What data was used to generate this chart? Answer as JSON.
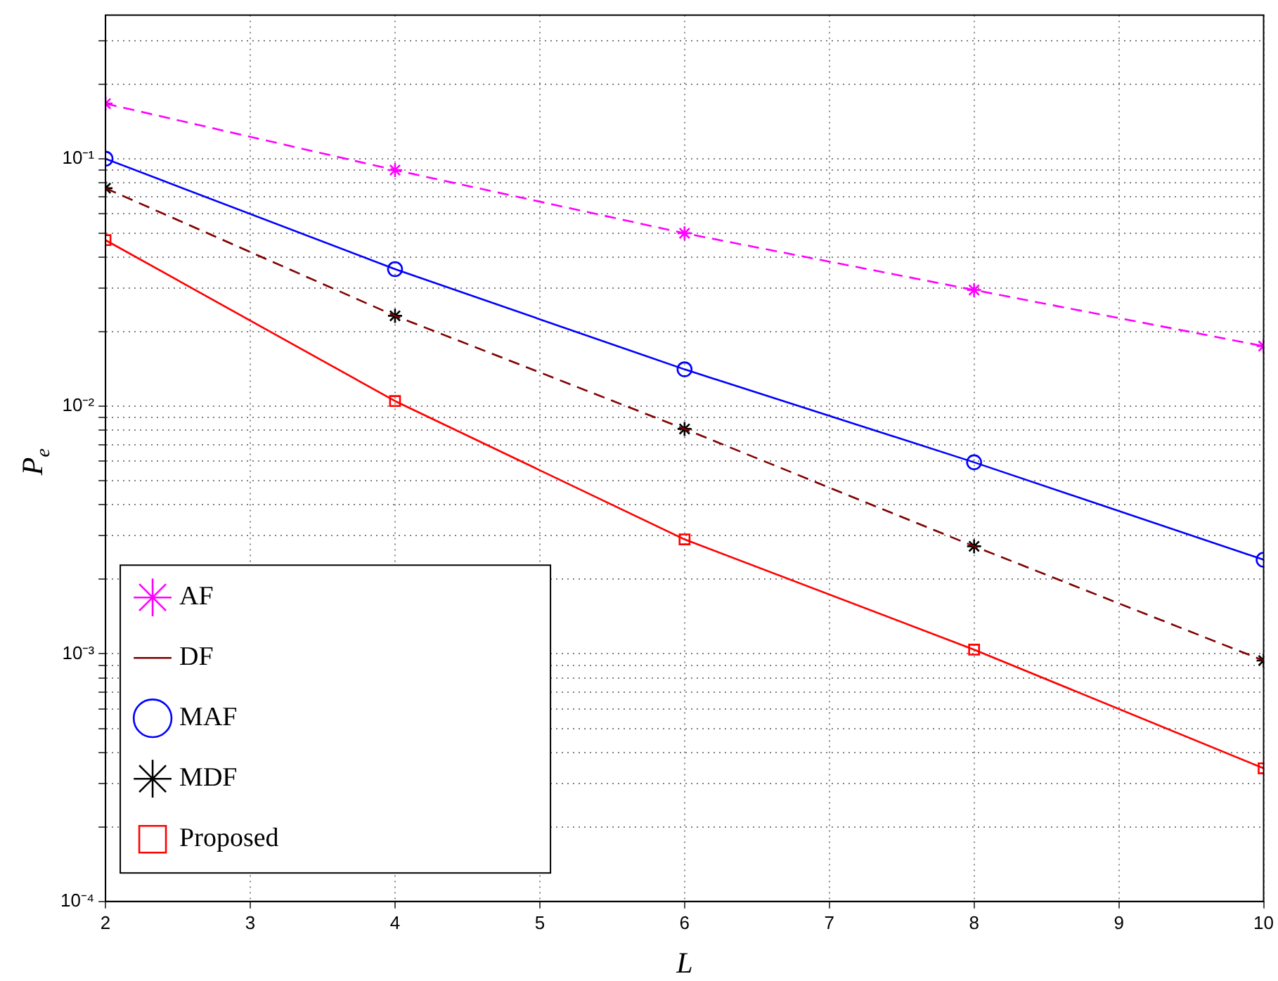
{
  "chart_data": {
    "type": "line",
    "xlabel": "L",
    "ylabel": "P$_{e}$",
    "x": [
      2,
      4,
      6,
      8,
      10
    ],
    "log": "y",
    "grid": true,
    "legend": "bottom left",
    "xlim": [
      2,
      10
    ],
    "xticks": [
      2,
      3,
      4,
      5,
      6,
      7,
      8,
      9,
      10
    ],
    "ylim": [
      0.0001,
      0.38
    ],
    "yticks": [
      {
        "value": 0.0001,
        "label": "10⁻⁴"
      },
      {
        "value": 0.0002,
        "label": null
      },
      {
        "value": 0.0003,
        "label": null
      },
      {
        "value": 0.0004,
        "label": null
      },
      {
        "value": 0.0005,
        "label": null
      },
      {
        "value": 0.0006,
        "label": null
      },
      {
        "value": 0.0007,
        "label": null
      },
      {
        "value": 0.0008,
        "label": null
      },
      {
        "value": 0.0009,
        "label": null
      },
      {
        "value": 0.001,
        "label": "10⁻³"
      },
      {
        "value": 0.002,
        "label": null
      },
      {
        "value": 0.003,
        "label": null
      },
      {
        "value": 0.004,
        "label": null
      },
      {
        "value": 0.005,
        "label": null
      },
      {
        "value": 0.006,
        "label": null
      },
      {
        "value": 0.007,
        "label": null
      },
      {
        "value": 0.008,
        "label": null
      },
      {
        "value": 0.009,
        "label": null
      },
      {
        "value": 0.01,
        "label": "10⁻²"
      },
      {
        "value": 0.02,
        "label": null
      },
      {
        "value": 0.03,
        "label": null
      },
      {
        "value": 0.04,
        "label": null
      },
      {
        "value": 0.05,
        "label": null
      },
      {
        "value": 0.06,
        "label": null
      },
      {
        "value": 0.07,
        "label": null
      },
      {
        "value": 0.08,
        "label": null
      },
      {
        "value": 0.09,
        "label": null
      },
      {
        "value": 0.1,
        "label": "10⁻¹"
      },
      {
        "value": 0.2,
        "label": null
      },
      {
        "value": 0.3,
        "label": null
      }
    ],
    "series": [
      {
        "name": "AF",
        "color": "#ff00ff",
        "line_style": "dashed",
        "marker": "cross",
        "values": [
          0.167,
          0.09,
          0.05,
          0.0295,
          0.0175
        ]
      },
      {
        "name": "DF",
        "color": "#800000",
        "line_style": "dashed",
        "marker": "none",
        "values": [
          0.076,
          0.0232,
          0.0081,
          0.00272,
          0.00094
        ]
      },
      {
        "name": "MAF",
        "color": "#0000ff",
        "line_style": "solid",
        "marker": "circle",
        "values": [
          0.1,
          0.0358,
          0.0141,
          0.00594,
          0.0024
        ]
      },
      {
        "name": "MDF",
        "type": "scatter",
        "color": "#000000",
        "marker": "cross",
        "values": [
          0.076,
          0.0232,
          0.0081,
          0.00272,
          0.00094
        ]
      },
      {
        "name": "Proposed",
        "color": "#ff0000",
        "line_style": "solid",
        "marker": "square",
        "values": [
          0.0469,
          0.0105,
          0.0029,
          0.00104,
          0.000345
        ]
      }
    ]
  }
}
